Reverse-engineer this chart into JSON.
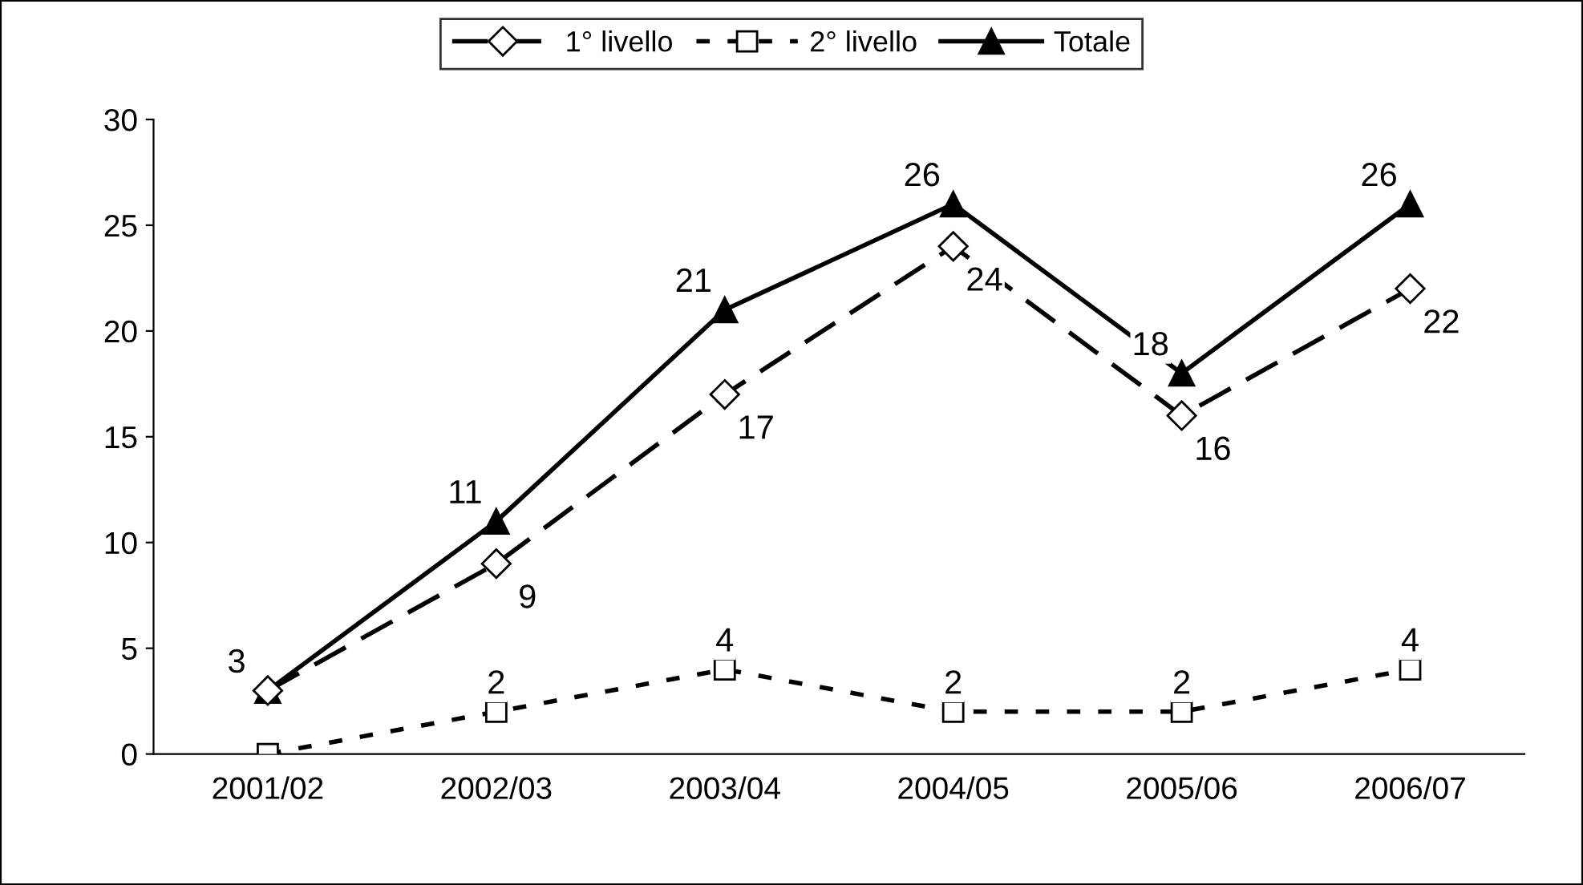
{
  "chart_data": {
    "type": "line",
    "categories": [
      "2001/02",
      "2002/03",
      "2003/04",
      "2004/05",
      "2005/06",
      "2006/07"
    ],
    "series": [
      {
        "name": "1° livello",
        "color": "#000000",
        "values": [
          3,
          9,
          17,
          24,
          16,
          22
        ],
        "marker": "diamond",
        "line_style": "dashed",
        "value_labels": [
          null,
          "9",
          "17",
          "24",
          "16",
          "22"
        ]
      },
      {
        "name": "2° livello",
        "color": "#000000",
        "values": [
          0,
          2,
          4,
          2,
          2,
          4
        ],
        "marker": "square",
        "line_style": "dotted",
        "value_labels": [
          null,
          "2",
          "4",
          "2",
          "2",
          "4"
        ]
      },
      {
        "name": "Totale",
        "color": "#000000",
        "values": [
          3,
          11,
          21,
          26,
          18,
          26
        ],
        "marker": "triangle",
        "line_style": "solid",
        "value_labels": [
          "3",
          "11",
          "21",
          "26",
          "18",
          "26"
        ]
      }
    ],
    "ylim": [
      0,
      30
    ],
    "yticks": [
      0,
      5,
      10,
      15,
      20,
      25,
      30
    ],
    "grid": false,
    "legend": "top"
  }
}
